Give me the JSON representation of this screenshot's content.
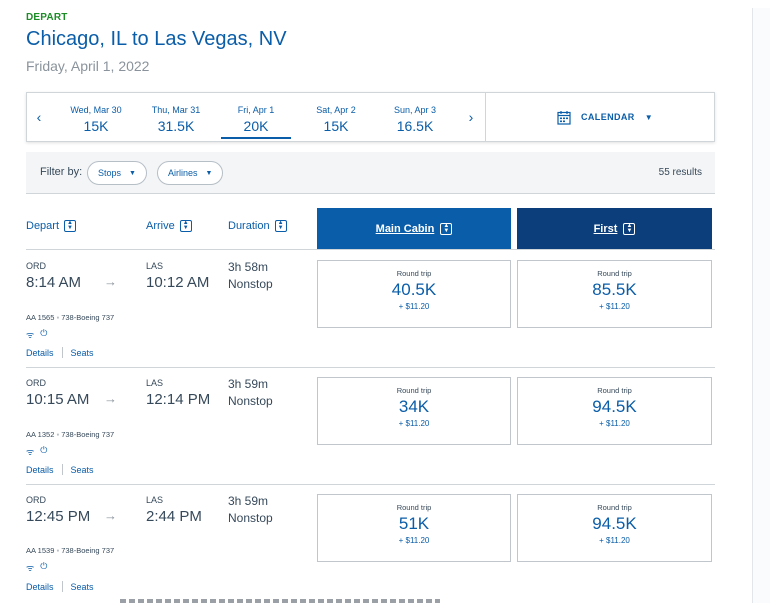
{
  "header": {
    "depart_label": "DEPART",
    "route": "Chicago, IL to Las Vegas, NV",
    "date": "Friday, April 1, 2022"
  },
  "date_bar": {
    "prev_icon": "‹",
    "next_icon": "›",
    "dates": [
      {
        "label": "Wed, Mar 30",
        "price": "15K",
        "selected": false
      },
      {
        "label": "Thu, Mar 31",
        "price": "31.5K",
        "selected": false
      },
      {
        "label": "Fri, Apr 1",
        "price": "20K",
        "selected": true
      },
      {
        "label": "Sat, Apr 2",
        "price": "15K",
        "selected": false
      },
      {
        "label": "Sun, Apr 3",
        "price": "16.5K",
        "selected": false
      }
    ],
    "calendar_label": "CALENDAR"
  },
  "filters": {
    "label": "Filter by:",
    "stops": "Stops",
    "airlines": "Airlines",
    "results": "55 results"
  },
  "columns": {
    "depart": "Depart",
    "arrive": "Arrive",
    "duration": "Duration",
    "main_cabin": "Main Cabin",
    "first": "First"
  },
  "flights": [
    {
      "origin": "ORD",
      "depart_time": "8:14 AM",
      "destination": "LAS",
      "arrive_time": "10:12 AM",
      "duration": "3h 58m",
      "stops": "Nonstop",
      "flight_number": "AA 1565",
      "aircraft": "738-Boeing 737",
      "main": {
        "label": "Round trip",
        "miles": "40.5K",
        "tax": "+ $11.20"
      },
      "first": {
        "label": "Round trip",
        "miles": "85.5K",
        "tax": "+ $11.20"
      },
      "details": "Details",
      "seats": "Seats"
    },
    {
      "origin": "ORD",
      "depart_time": "10:15 AM",
      "destination": "LAS",
      "arrive_time": "12:14 PM",
      "duration": "3h 59m",
      "stops": "Nonstop",
      "flight_number": "AA 1352",
      "aircraft": "738-Boeing 737",
      "main": {
        "label": "Round trip",
        "miles": "34K",
        "tax": "+ $11.20"
      },
      "first": {
        "label": "Round trip",
        "miles": "94.5K",
        "tax": "+ $11.20"
      },
      "details": "Details",
      "seats": "Seats"
    },
    {
      "origin": "ORD",
      "depart_time": "12:45 PM",
      "destination": "LAS",
      "arrive_time": "2:44 PM",
      "duration": "3h 59m",
      "stops": "Nonstop",
      "flight_number": "AA 1539",
      "aircraft": "738-Boeing 737",
      "main": {
        "label": "Round trip",
        "miles": "51K",
        "tax": "+ $11.20"
      },
      "first": {
        "label": "Round trip",
        "miles": "94.5K",
        "tax": "+ $11.20"
      },
      "details": "Details",
      "seats": "Seats"
    }
  ],
  "colors": {
    "brand_blue": "#0a5da8",
    "first_blue": "#0b3e7a",
    "depart_green": "#1c8c26",
    "text": "#36495a"
  }
}
